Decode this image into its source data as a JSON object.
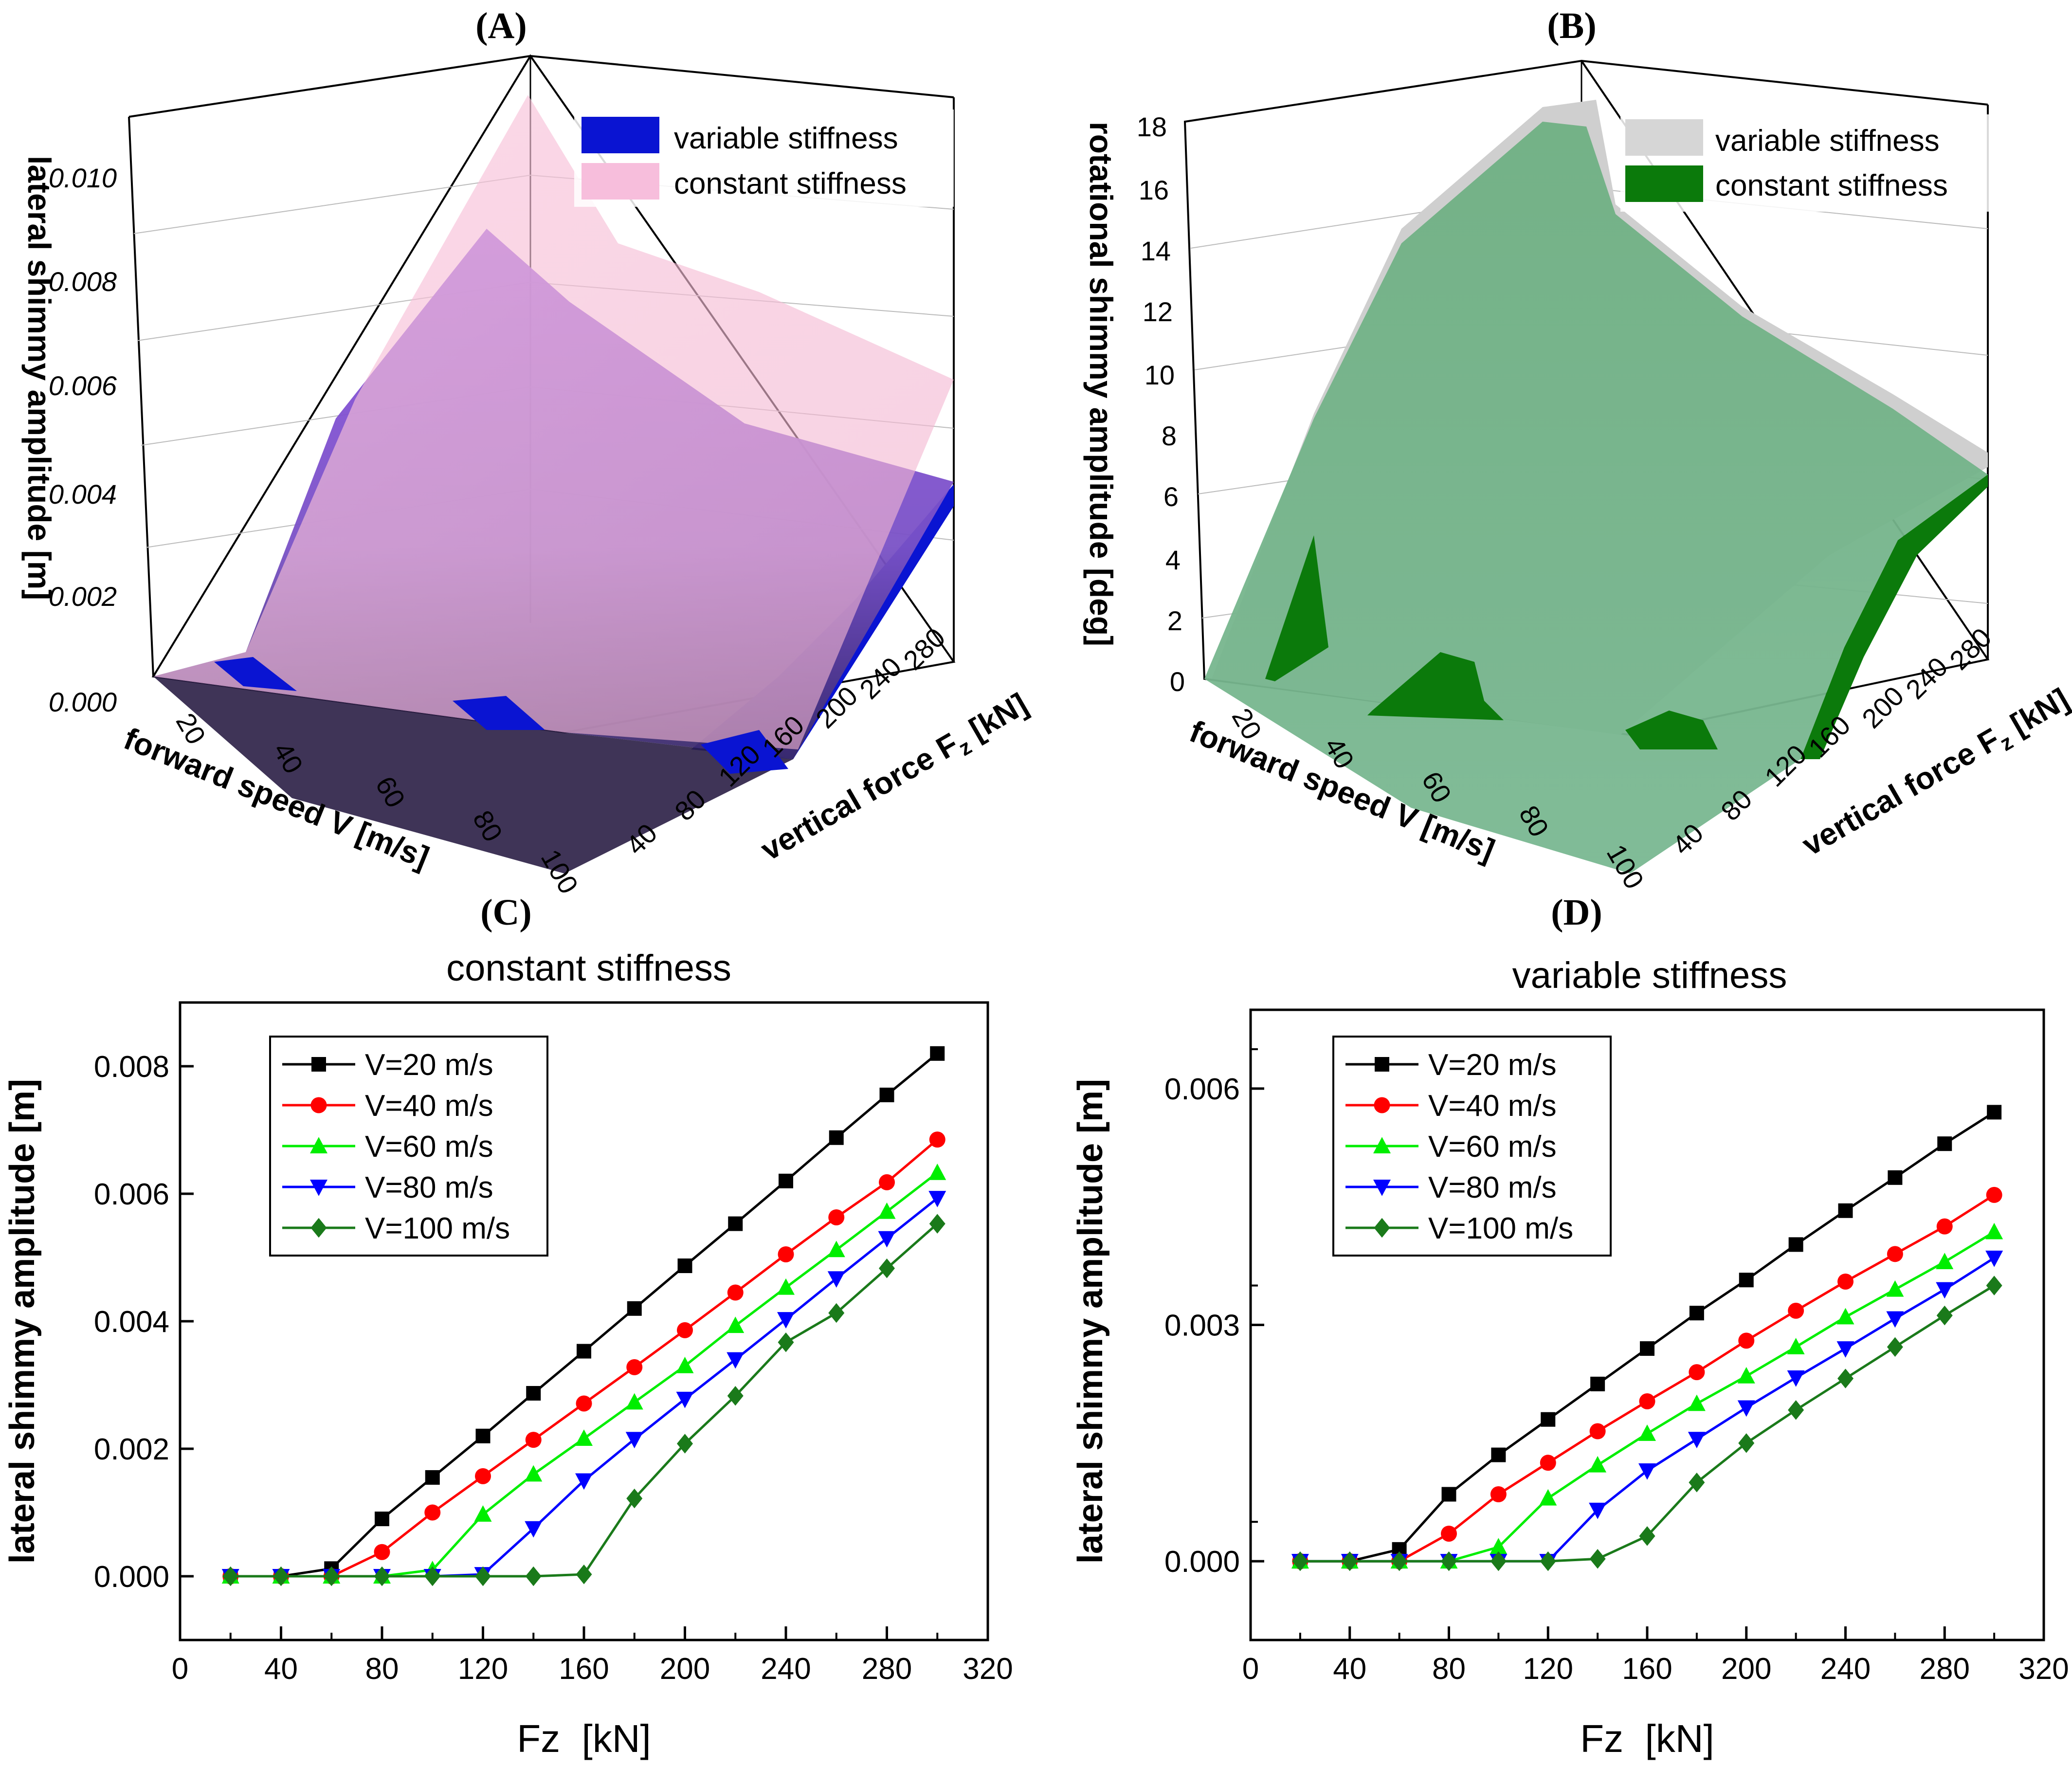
{
  "panels": {
    "A": {
      "label": "(A)",
      "zlabel": "lateral shimmy amplitude [m]",
      "xlabel": "forward speed V [m/s]",
      "ylabel": "vertical force F",
      "ylabel_sub": "z",
      "ylabel_unit": " [kN]",
      "zticks": [
        "0.000",
        "0.002",
        "0.004",
        "0.006",
        "0.008",
        "0.010"
      ],
      "vticks": [
        "20",
        "40",
        "60",
        "80",
        "100"
      ],
      "fticks": [
        "40",
        "80",
        "120",
        "160",
        "200",
        "240",
        "280"
      ],
      "legend": [
        {
          "label": "variable stiffness",
          "color": "#0a14d2"
        },
        {
          "label": "constant stiffness",
          "color": "#f7bedc"
        }
      ]
    },
    "B": {
      "label": "(B)",
      "zlabel": "rotational shimmy amplitude [deg]",
      "xlabel": "forward speed V [m/s]",
      "ylabel": "vertical force F",
      "ylabel_sub": "z",
      "ylabel_unit": " [kN]",
      "zticks": [
        "0",
        "2",
        "4",
        "6",
        "8",
        "10",
        "12",
        "14",
        "16",
        "18"
      ],
      "vticks": [
        "20",
        "40",
        "60",
        "80",
        "100"
      ],
      "fticks": [
        "40",
        "80",
        "120",
        "160",
        "200",
        "240",
        "280"
      ],
      "legend": [
        {
          "label": "variable stiffness",
          "color": "#d6d6d6"
        },
        {
          "label": "constant stiffness",
          "color": "#0b7a0b"
        }
      ]
    }
  },
  "chart_data": [
    {
      "panel": "(C)",
      "type": "line",
      "title": "constant stiffness",
      "xlabel": "Fz  [kN]",
      "ylabel": "lateral shimmy amplitude [m]",
      "xlim": [
        0,
        320
      ],
      "ylim": [
        -0.001,
        0.009
      ],
      "xticks": [
        0,
        40,
        80,
        120,
        160,
        200,
        240,
        280,
        320
      ],
      "yticks": [
        0.0,
        0.002,
        0.004,
        0.006,
        0.008
      ],
      "ytick_labels": [
        "0.000",
        "0.002",
        "0.004",
        "0.006",
        "0.008"
      ],
      "x": [
        20,
        40,
        60,
        80,
        100,
        120,
        140,
        160,
        180,
        200,
        220,
        240,
        260,
        280,
        300
      ],
      "series": [
        {
          "name": "V=20 m/s",
          "color": "#000000",
          "marker": "square",
          "values": [
            0,
            0,
            0.00012,
            0.0009,
            0.00155,
            0.0022,
            0.00287,
            0.00353,
            0.0042,
            0.00487,
            0.00553,
            0.0062,
            0.00688,
            0.00755,
            0.0082
          ]
        },
        {
          "name": "V=40 m/s",
          "color": "#ff0000",
          "marker": "circle",
          "values": [
            0,
            0,
            0,
            0.00038,
            0.001,
            0.00157,
            0.00214,
            0.00271,
            0.00328,
            0.00386,
            0.00445,
            0.00505,
            0.00563,
            0.00618,
            0.00685
          ]
        },
        {
          "name": "V=60 m/s",
          "color": "#00ee00",
          "marker": "triangle-up",
          "values": [
            0,
            0,
            0,
            0,
            0.0001,
            0.00097,
            0.0016,
            0.00216,
            0.00273,
            0.0033,
            0.00393,
            0.00453,
            0.00512,
            0.00572,
            0.00633
          ]
        },
        {
          "name": "V=80 m/s",
          "color": "#0000ff",
          "marker": "triangle-down",
          "values": [
            0,
            0,
            0,
            0,
            0,
            3e-05,
            0.00075,
            0.0015,
            0.00215,
            0.00278,
            0.0034,
            0.00403,
            0.00467,
            0.0053,
            0.00593
          ]
        },
        {
          "name": "V=100 m/s",
          "color": "#1a7a1a",
          "marker": "diamond",
          "values": [
            0,
            0,
            0,
            0,
            0,
            0,
            0,
            3e-05,
            0.00122,
            0.00208,
            0.00283,
            0.00367,
            0.00413,
            0.00483,
            0.00553
          ]
        }
      ]
    },
    {
      "panel": "(D)",
      "type": "line",
      "title": "variable stiffness",
      "xlabel": "Fz  [kN]",
      "ylabel": "lateral shimmy amplitude [m]",
      "xlim": [
        0,
        320
      ],
      "ylim": [
        -0.001,
        0.007
      ],
      "xticks": [
        0,
        40,
        80,
        120,
        160,
        200,
        240,
        280,
        320
      ],
      "yticks": [
        0.0,
        0.003,
        0.006
      ],
      "ytick_labels": [
        "0.000",
        "0.003",
        "0.006"
      ],
      "x": [
        20,
        40,
        60,
        80,
        100,
        120,
        140,
        160,
        180,
        200,
        220,
        240,
        260,
        280,
        300
      ],
      "series": [
        {
          "name": "V=20 m/s",
          "color": "#000000",
          "marker": "square",
          "values": [
            0,
            0,
            0.00015,
            0.00085,
            0.00135,
            0.0018,
            0.00225,
            0.0027,
            0.00315,
            0.00357,
            0.00402,
            0.00445,
            0.00487,
            0.0053,
            0.0057
          ]
        },
        {
          "name": "V=40 m/s",
          "color": "#ff0000",
          "marker": "circle",
          "values": [
            0,
            0,
            0,
            0.00035,
            0.00085,
            0.00125,
            0.00165,
            0.00203,
            0.0024,
            0.0028,
            0.00318,
            0.00355,
            0.0039,
            0.00425,
            0.00465
          ]
        },
        {
          "name": "V=60 m/s",
          "color": "#00ee00",
          "marker": "triangle-up",
          "values": [
            0,
            0,
            0,
            0,
            0.00018,
            0.0008,
            0.00122,
            0.00162,
            0.002,
            0.00235,
            0.00272,
            0.0031,
            0.00345,
            0.0038,
            0.00418
          ]
        },
        {
          "name": "V=80 m/s",
          "color": "#0000ff",
          "marker": "triangle-down",
          "values": [
            0,
            0,
            0,
            0,
            0,
            0,
            0.00065,
            0.00115,
            0.00155,
            0.00195,
            0.00233,
            0.0027,
            0.00308,
            0.00345,
            0.00385
          ]
        },
        {
          "name": "V=100 m/s",
          "color": "#1a7a1a",
          "marker": "diamond",
          "values": [
            0,
            0,
            0,
            0,
            0,
            0,
            3e-05,
            0.00032,
            0.001,
            0.0015,
            0.00192,
            0.00232,
            0.00272,
            0.00312,
            0.0035
          ]
        }
      ]
    }
  ]
}
